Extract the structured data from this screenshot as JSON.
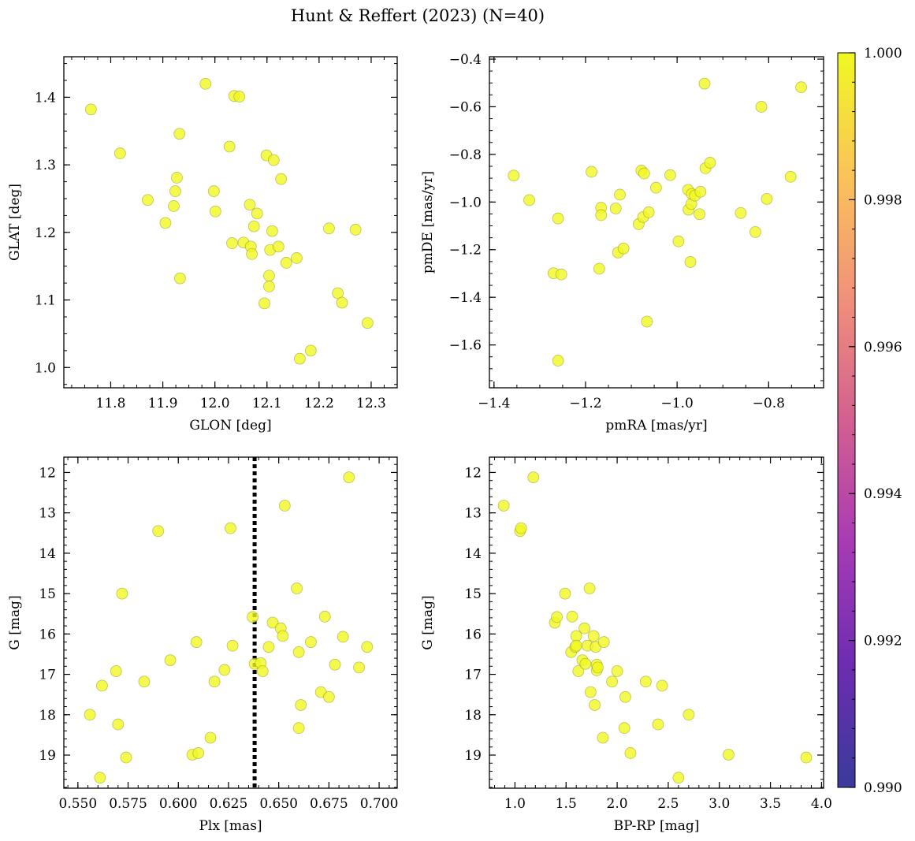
{
  "chart_data": {
    "title": "Hunt & Reffert (2023) (N=40)",
    "point_color": "#f0f921",
    "colorbar": {
      "min": 0.99,
      "max": 1.0,
      "ticks": [
        "0.990",
        "0.992",
        "0.994",
        "0.996",
        "0.998",
        "1.000"
      ],
      "ticks_value": [
        0.99,
        0.992,
        0.994,
        0.996,
        0.998,
        1.0
      ],
      "colormap": "plasma",
      "stops": [
        "#3a3b99",
        "#6c2db0",
        "#a83bb4",
        "#d26090",
        "#f0917a",
        "#fbc35a",
        "#f0f921"
      ]
    },
    "panels": [
      {
        "type": "scatter",
        "name": "glon-glat",
        "xlabel": "GLON [deg]",
        "ylabel": "GLAT [deg]",
        "xlim": [
          11.71,
          12.35
        ],
        "ylim": [
          0.97,
          1.46
        ],
        "xticks": [
          11.8,
          11.9,
          12.0,
          12.1,
          12.2,
          12.3
        ],
        "xticklabels": [
          "11.8",
          "11.9",
          "12.0",
          "12.1",
          "12.2",
          "12.3"
        ],
        "yticks": [
          1.0,
          1.1,
          1.2,
          1.3,
          1.4
        ],
        "yticklabels": [
          "1.0",
          "1.1",
          "1.2",
          "1.3",
          "1.4"
        ],
        "xminor": 0.025,
        "yminor": 0.025,
        "points": [
          [
            11.762,
            1.382
          ],
          [
            11.818,
            1.317
          ],
          [
            11.871,
            1.248
          ],
          [
            11.905,
            1.214
          ],
          [
            11.921,
            1.239
          ],
          [
            11.924,
            1.261
          ],
          [
            11.927,
            1.281
          ],
          [
            11.932,
            1.346
          ],
          [
            11.933,
            1.132
          ],
          [
            11.982,
            1.42
          ],
          [
            11.998,
            1.261
          ],
          [
            12.001,
            1.231
          ],
          [
            12.028,
            1.327
          ],
          [
            12.033,
            1.184
          ],
          [
            12.037,
            1.402
          ],
          [
            12.047,
            1.401
          ],
          [
            12.055,
            1.185
          ],
          [
            12.067,
            1.241
          ],
          [
            12.069,
            1.179
          ],
          [
            12.071,
            1.168
          ],
          [
            12.075,
            1.209
          ],
          [
            12.081,
            1.228
          ],
          [
            12.095,
            1.095
          ],
          [
            12.099,
            1.314
          ],
          [
            12.104,
            1.136
          ],
          [
            12.104,
            1.12
          ],
          [
            12.106,
            1.174
          ],
          [
            12.11,
            1.202
          ],
          [
            12.113,
            1.307
          ],
          [
            12.122,
            1.179
          ],
          [
            12.127,
            1.279
          ],
          [
            12.137,
            1.155
          ],
          [
            12.157,
            1.162
          ],
          [
            12.163,
            1.013
          ],
          [
            12.184,
            1.025
          ],
          [
            12.219,
            1.206
          ],
          [
            12.236,
            1.11
          ],
          [
            12.244,
            1.096
          ],
          [
            12.27,
            1.204
          ],
          [
            12.293,
            1.066
          ]
        ]
      },
      {
        "type": "scatter",
        "name": "pmra-pmde",
        "xlabel": "pmRA [mas/yr]",
        "ylabel": "pmDE [mas/yr]",
        "xlim": [
          -1.41,
          -0.68
        ],
        "ylim": [
          -1.78,
          -0.39
        ],
        "xticks": [
          -1.4,
          -1.2,
          -1.0,
          -0.8
        ],
        "xticklabels": [
          "−1.4",
          "−1.2",
          "−1.0",
          "−0.8"
        ],
        "yticks": [
          -1.6,
          -1.4,
          -1.2,
          -1.0,
          -0.8,
          -0.6,
          -0.4
        ],
        "yticklabels": [
          "−1.6",
          "−1.4",
          "−1.2",
          "−1.0",
          "−0.8",
          "−0.6",
          "−0.4"
        ],
        "xminor": 0.05,
        "yminor": 0.05,
        "points": [
          [
            -1.357,
            -0.889
          ],
          [
            -1.323,
            -0.992
          ],
          [
            -1.27,
            -1.299
          ],
          [
            -1.26,
            -1.069
          ],
          [
            -1.26,
            -1.666
          ],
          [
            -1.253,
            -1.304
          ],
          [
            -1.187,
            -0.873
          ],
          [
            -1.17,
            -1.28
          ],
          [
            -1.166,
            -1.024
          ],
          [
            -1.166,
            -1.055
          ],
          [
            -1.134,
            -1.027
          ],
          [
            -1.129,
            -1.212
          ],
          [
            -1.125,
            -0.969
          ],
          [
            -1.117,
            -1.195
          ],
          [
            -1.084,
            -1.093
          ],
          [
            -1.078,
            -0.868
          ],
          [
            -1.074,
            -1.063
          ],
          [
            -1.072,
            -0.88
          ],
          [
            -1.066,
            -1.502
          ],
          [
            -1.062,
            -1.043
          ],
          [
            -1.046,
            -0.94
          ],
          [
            -1.015,
            -0.887
          ],
          [
            -0.997,
            -1.165
          ],
          [
            -0.976,
            -0.949
          ],
          [
            -0.975,
            -1.032
          ],
          [
            -0.971,
            -1.252
          ],
          [
            -0.969,
            -1.008
          ],
          [
            -0.968,
            -0.966
          ],
          [
            -0.961,
            -0.973
          ],
          [
            -0.951,
            -1.051
          ],
          [
            -0.949,
            -0.957
          ],
          [
            -0.94,
            -0.503
          ],
          [
            -0.938,
            -0.858
          ],
          [
            -0.928,
            -0.835
          ],
          [
            -0.861,
            -1.046
          ],
          [
            -0.829,
            -1.126
          ],
          [
            -0.816,
            -0.6
          ],
          [
            -0.804,
            -0.987
          ],
          [
            -0.752,
            -0.894
          ],
          [
            -0.729,
            -0.518
          ]
        ]
      },
      {
        "type": "scatter",
        "name": "plx-g",
        "xlabel": "Plx [mas]",
        "ylabel": "G [mag]",
        "xlim": [
          0.543,
          0.709
        ],
        "ylim": [
          19.82,
          11.62
        ],
        "invert_y": true,
        "xticks": [
          0.55,
          0.575,
          0.6,
          0.625,
          0.65,
          0.675,
          0.7
        ],
        "xticklabels": [
          "0.550",
          "0.575",
          "0.600",
          "0.625",
          "0.650",
          "0.675",
          "0.700"
        ],
        "yticks": [
          12,
          13,
          14,
          15,
          16,
          17,
          18,
          19
        ],
        "yticklabels": [
          "12",
          "13",
          "14",
          "15",
          "16",
          "17",
          "18",
          "19"
        ],
        "xminor": 0.005,
        "yminor": 0.2,
        "vline": {
          "x": 0.638,
          "style": "dotted",
          "color": "#000000"
        },
        "points": [
          [
            0.556,
            18.0
          ],
          [
            0.561,
            19.56
          ],
          [
            0.562,
            17.28
          ],
          [
            0.569,
            16.92
          ],
          [
            0.57,
            18.24
          ],
          [
            0.572,
            15.0
          ],
          [
            0.574,
            19.06
          ],
          [
            0.583,
            17.18
          ],
          [
            0.59,
            13.45
          ],
          [
            0.596,
            16.65
          ],
          [
            0.607,
            18.99
          ],
          [
            0.609,
            16.2
          ],
          [
            0.61,
            18.95
          ],
          [
            0.616,
            18.57
          ],
          [
            0.618,
            17.18
          ],
          [
            0.623,
            16.89
          ],
          [
            0.626,
            13.38
          ],
          [
            0.627,
            16.29
          ],
          [
            0.637,
            15.58
          ],
          [
            0.638,
            16.74
          ],
          [
            0.641,
            16.72
          ],
          [
            0.642,
            16.92
          ],
          [
            0.645,
            16.32
          ],
          [
            0.647,
            15.72
          ],
          [
            0.651,
            15.86
          ],
          [
            0.652,
            16.05
          ],
          [
            0.653,
            12.82
          ],
          [
            0.659,
            14.87
          ],
          [
            0.66,
            16.45
          ],
          [
            0.66,
            18.33
          ],
          [
            0.661,
            17.76
          ],
          [
            0.666,
            16.2
          ],
          [
            0.671,
            17.44
          ],
          [
            0.673,
            15.57
          ],
          [
            0.675,
            17.56
          ],
          [
            0.678,
            16.76
          ],
          [
            0.682,
            16.07
          ],
          [
            0.685,
            12.12
          ],
          [
            0.69,
            16.83
          ],
          [
            0.694,
            16.32
          ]
        ]
      },
      {
        "type": "scatter",
        "name": "bprp-g",
        "xlabel": "BP-RP [mag]",
        "ylabel": "G [mag]",
        "xlim": [
          0.75,
          4.02
        ],
        "ylim": [
          19.82,
          11.62
        ],
        "invert_y": true,
        "xticks": [
          1.0,
          1.5,
          2.0,
          2.5,
          3.0,
          3.5,
          4.0
        ],
        "xticklabels": [
          "1.0",
          "1.5",
          "2.0",
          "2.5",
          "3.0",
          "3.5",
          "4.0"
        ],
        "yticks": [
          12,
          13,
          14,
          15,
          16,
          17,
          18,
          19
        ],
        "yticklabels": [
          "12",
          "13",
          "14",
          "15",
          "16",
          "17",
          "18",
          "19"
        ],
        "xminor": 0.1,
        "yminor": 0.2,
        "points": [
          [
            0.89,
            12.82
          ],
          [
            1.05,
            13.45
          ],
          [
            1.06,
            13.38
          ],
          [
            1.18,
            12.12
          ],
          [
            1.39,
            15.72
          ],
          [
            1.41,
            15.58
          ],
          [
            1.49,
            15.0
          ],
          [
            1.55,
            16.45
          ],
          [
            1.56,
            15.57
          ],
          [
            1.59,
            16.32
          ],
          [
            1.6,
            16.05
          ],
          [
            1.6,
            16.29
          ],
          [
            1.62,
            16.92
          ],
          [
            1.66,
            16.65
          ],
          [
            1.68,
            15.86
          ],
          [
            1.69,
            16.74
          ],
          [
            1.71,
            16.29
          ],
          [
            1.73,
            14.87
          ],
          [
            1.74,
            17.44
          ],
          [
            1.77,
            16.05
          ],
          [
            1.78,
            17.76
          ],
          [
            1.79,
            16.32
          ],
          [
            1.8,
            16.9
          ],
          [
            1.8,
            16.76
          ],
          [
            1.81,
            16.83
          ],
          [
            1.86,
            18.57
          ],
          [
            1.87,
            16.2
          ],
          [
            1.95,
            17.18
          ],
          [
            2.0,
            16.92
          ],
          [
            2.07,
            18.33
          ],
          [
            2.08,
            17.56
          ],
          [
            2.13,
            18.95
          ],
          [
            2.28,
            17.18
          ],
          [
            2.4,
            18.24
          ],
          [
            2.44,
            17.28
          ],
          [
            2.6,
            19.56
          ],
          [
            2.7,
            18.0
          ],
          [
            3.09,
            18.99
          ],
          [
            3.85,
            19.06
          ]
        ]
      }
    ]
  }
}
